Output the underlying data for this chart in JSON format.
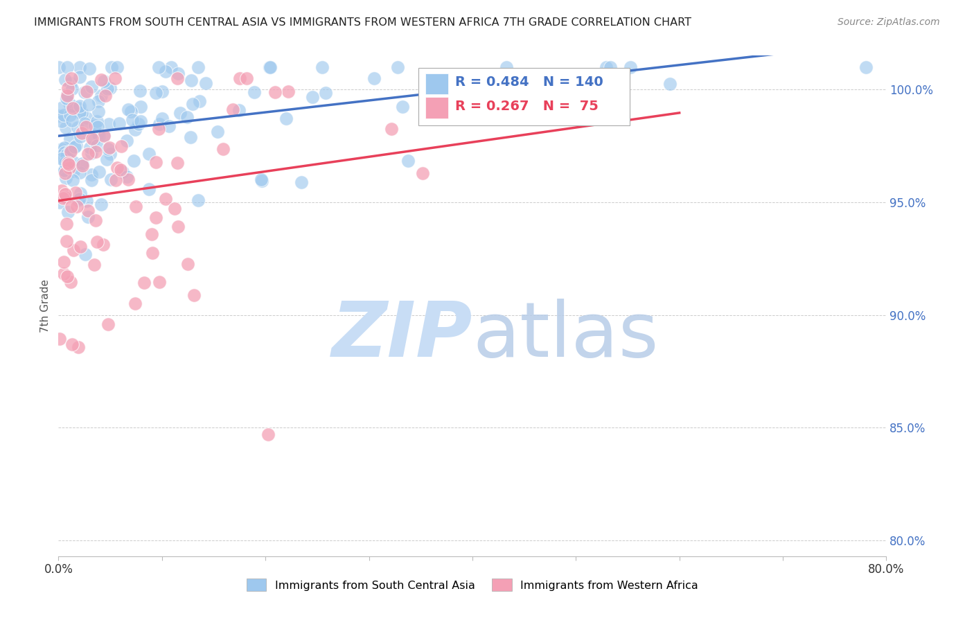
{
  "title": "IMMIGRANTS FROM SOUTH CENTRAL ASIA VS IMMIGRANTS FROM WESTERN AFRICA 7TH GRADE CORRELATION CHART",
  "source": "Source: ZipAtlas.com",
  "ylabel": "7th Grade",
  "right_yticks": [
    "100.0%",
    "95.0%",
    "90.0%",
    "85.0%",
    "80.0%"
  ],
  "right_ytick_vals": [
    1.0,
    0.95,
    0.9,
    0.85,
    0.8
  ],
  "xlim": [
    0.0,
    0.8
  ],
  "ylim": [
    0.793,
    1.015
  ],
  "series1_label": "Immigrants from South Central Asia",
  "series1_color": "#9EC8EE",
  "series1_R": 0.484,
  "series1_N": 140,
  "series2_label": "Immigrants from Western Africa",
  "series2_color": "#F4A0B5",
  "series2_R": 0.267,
  "series2_N": 75,
  "line1_color": "#4472C4",
  "line2_color": "#E8405A",
  "background_color": "#FFFFFF",
  "title_color": "#222222",
  "right_axis_color": "#4472C4",
  "grid_color": "#CCCCCC",
  "legend_border_color": "#AAAAAA"
}
